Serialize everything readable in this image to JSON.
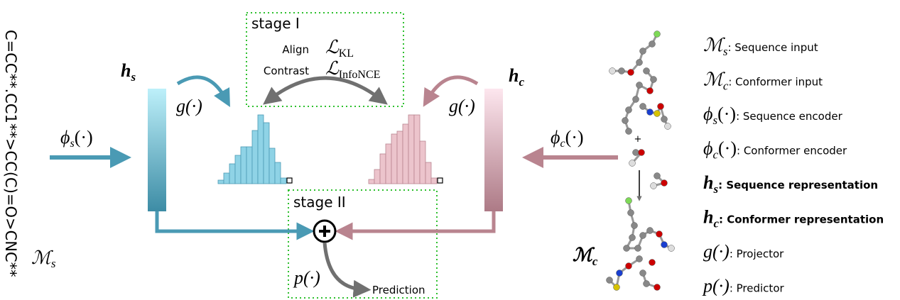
{
  "smiles": "C=CC**.CC1**>CC(C)=O>CNC**",
  "stage1": {
    "title": "stage I",
    "rows": [
      {
        "label": "Align",
        "loss": "ℒ",
        "sub": "KL"
      },
      {
        "label": "Contrast",
        "loss": "ℒ",
        "sub": "InfoNCE"
      }
    ]
  },
  "stage2": {
    "title": "stage II",
    "predictor": "p(·)",
    "output": "Prediction"
  },
  "labels": {
    "ms": {
      "base": "ℳ",
      "sub": "s"
    },
    "mc": {
      "base": "ℳ",
      "sub": "c"
    },
    "hs": {
      "base": "h",
      "sub": "s"
    },
    "hc": {
      "base": "h",
      "sub": "c"
    },
    "phis": {
      "base": "ϕ",
      "sub": "s",
      "arg": "(·)"
    },
    "phic": {
      "base": "ϕ",
      "sub": "c",
      "arg": "(·)"
    },
    "gs": "g(·)",
    "gc": "g(·)",
    "reaction_plus": "+"
  },
  "legend": [
    {
      "base": "ℳ",
      "sub": "s",
      "desc": ": Sequence input"
    },
    {
      "base": "ℳ",
      "sub": "c",
      "desc": ": Conformer input"
    },
    {
      "base": "ϕ",
      "sub": "s",
      "arg": "(·)",
      "desc": ": Sequence encoder"
    },
    {
      "base": "ϕ",
      "sub": "c",
      "arg": "(·)",
      "desc": ": Conformer encoder"
    },
    {
      "base": "h",
      "sub": "s",
      "desc": ": Sequence representation"
    },
    {
      "base": "h",
      "sub": "c",
      "desc": ": Conformer representation"
    },
    {
      "base": "g(·)",
      "desc": ": Projector"
    },
    {
      "base": "p(·)",
      "desc": ": Predictor"
    }
  ]
}
